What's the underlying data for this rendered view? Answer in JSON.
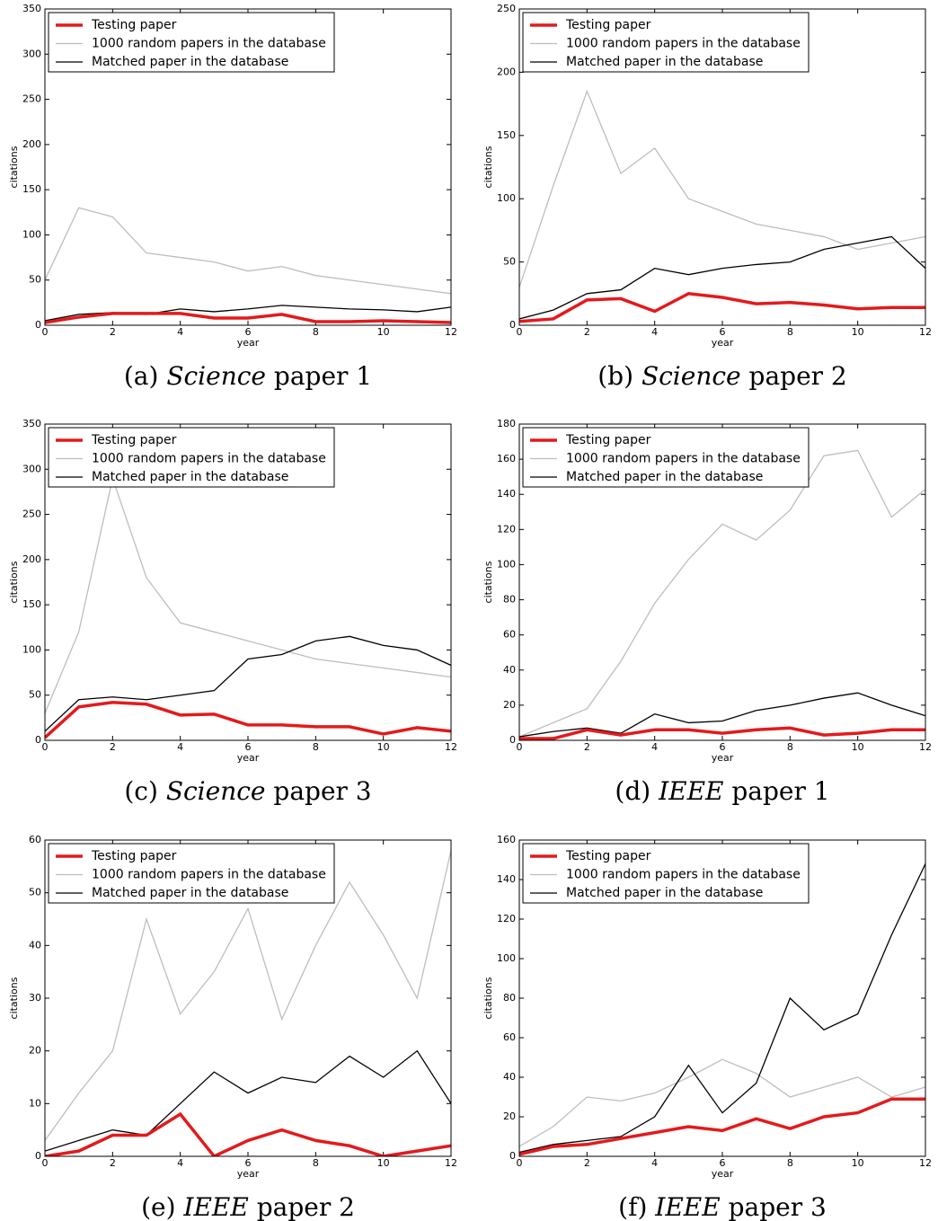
{
  "chart_data": [
    {
      "type": "line",
      "caption": {
        "label": "(a)",
        "journal": "Science",
        "text": "paper 1"
      },
      "xlabel": "year",
      "ylabel": "citations",
      "x": [
        0,
        1,
        2,
        3,
        4,
        5,
        6,
        7,
        8,
        9,
        10,
        11,
        12
      ],
      "xlim": [
        0,
        12
      ],
      "xticks": [
        0,
        2,
        4,
        6,
        8,
        10,
        12
      ],
      "ylim": [
        0,
        350
      ],
      "yticks": [
        0,
        50,
        100,
        150,
        200,
        250,
        300,
        350
      ],
      "series": [
        {
          "name": "Testing paper",
          "color": "#e31a1c",
          "values": [
            3,
            9,
            13,
            13,
            13,
            8,
            8,
            12,
            4,
            4,
            5,
            4,
            3
          ]
        },
        {
          "name": "1000 random papers in the database",
          "color": "#bdbdbd",
          "values": [
            50,
            130,
            120,
            80,
            75,
            70,
            60,
            65,
            55,
            50,
            45,
            40,
            35
          ]
        },
        {
          "name": "Matched paper in the database",
          "color": "#000000",
          "values": [
            5,
            12,
            14,
            12,
            18,
            15,
            18,
            22,
            20,
            18,
            17,
            15,
            20
          ]
        }
      ]
    },
    {
      "type": "line",
      "caption": {
        "label": "(b)",
        "journal": "Science",
        "text": "paper 2"
      },
      "xlabel": "year",
      "ylabel": "citations",
      "x": [
        0,
        1,
        2,
        3,
        4,
        5,
        6,
        7,
        8,
        9,
        10,
        11,
        12
      ],
      "xlim": [
        0,
        12
      ],
      "xticks": [
        0,
        2,
        4,
        6,
        8,
        10,
        12
      ],
      "ylim": [
        0,
        250
      ],
      "yticks": [
        0,
        50,
        100,
        150,
        200,
        250
      ],
      "series": [
        {
          "name": "Testing paper",
          "color": "#e31a1c",
          "values": [
            3,
            5,
            20,
            21,
            11,
            25,
            22,
            17,
            18,
            16,
            13,
            14,
            14
          ]
        },
        {
          "name": "1000 random papers in the database",
          "color": "#bdbdbd",
          "values": [
            30,
            110,
            185,
            120,
            140,
            100,
            90,
            80,
            75,
            70,
            60,
            65,
            70
          ]
        },
        {
          "name": "Matched paper in the database",
          "color": "#000000",
          "values": [
            5,
            12,
            25,
            28,
            45,
            40,
            45,
            48,
            50,
            60,
            65,
            70,
            45
          ]
        }
      ]
    },
    {
      "type": "line",
      "caption": {
        "label": "(c)",
        "journal": "Science",
        "text": "paper 3"
      },
      "xlabel": "year",
      "ylabel": "citations",
      "x": [
        0,
        1,
        2,
        3,
        4,
        5,
        6,
        7,
        8,
        9,
        10,
        11,
        12
      ],
      "xlim": [
        0,
        12
      ],
      "xticks": [
        0,
        2,
        4,
        6,
        8,
        10,
        12
      ],
      "ylim": [
        0,
        350
      ],
      "yticks": [
        0,
        50,
        100,
        150,
        200,
        250,
        300,
        350
      ],
      "series": [
        {
          "name": "Testing paper",
          "color": "#e31a1c",
          "values": [
            3,
            37,
            42,
            40,
            28,
            29,
            17,
            17,
            15,
            15,
            7,
            14,
            10
          ]
        },
        {
          "name": "1000 random papers in the database",
          "color": "#bdbdbd",
          "values": [
            30,
            120,
            290,
            180,
            130,
            120,
            110,
            100,
            90,
            85,
            80,
            75,
            70
          ]
        },
        {
          "name": "Matched paper in the database",
          "color": "#000000",
          "values": [
            10,
            45,
            48,
            45,
            50,
            55,
            90,
            95,
            110,
            115,
            105,
            100,
            83
          ]
        }
      ]
    },
    {
      "type": "line",
      "caption": {
        "label": "(d)",
        "journal": "IEEE",
        "text": "paper 1"
      },
      "xlabel": "year",
      "ylabel": "citations",
      "x": [
        0,
        1,
        2,
        3,
        4,
        5,
        6,
        7,
        8,
        9,
        10,
        11,
        12
      ],
      "xlim": [
        0,
        12
      ],
      "xticks": [
        0,
        2,
        4,
        6,
        8,
        10,
        12
      ],
      "ylim": [
        0,
        180
      ],
      "yticks": [
        0,
        20,
        40,
        60,
        80,
        100,
        120,
        140,
        160,
        180
      ],
      "series": [
        {
          "name": "Testing paper",
          "color": "#e31a1c",
          "values": [
            1,
            1,
            6,
            3,
            6,
            6,
            4,
            6,
            7,
            3,
            4,
            6,
            6
          ]
        },
        {
          "name": "1000 random papers in the database",
          "color": "#bdbdbd",
          "values": [
            2,
            10,
            18,
            45,
            78,
            103,
            123,
            114,
            131,
            162,
            165,
            127,
            143
          ]
        },
        {
          "name": "Matched paper in the database",
          "color": "#000000",
          "values": [
            2,
            5,
            7,
            4,
            15,
            10,
            11,
            17,
            20,
            24,
            27,
            20,
            14
          ]
        }
      ]
    },
    {
      "type": "line",
      "caption": {
        "label": "(e)",
        "journal": "IEEE",
        "text": "paper 2"
      },
      "xlabel": "year",
      "ylabel": "citations",
      "x": [
        0,
        1,
        2,
        3,
        4,
        5,
        6,
        7,
        8,
        9,
        10,
        11,
        12
      ],
      "xlim": [
        0,
        12
      ],
      "xticks": [
        0,
        2,
        4,
        6,
        8,
        10,
        12
      ],
      "ylim": [
        0,
        60
      ],
      "yticks": [
        0,
        10,
        20,
        30,
        40,
        50,
        60
      ],
      "series": [
        {
          "name": "Testing paper",
          "color": "#e31a1c",
          "values": [
            0,
            1,
            4,
            4,
            8,
            0,
            3,
            5,
            3,
            2,
            0,
            1,
            2
          ]
        },
        {
          "name": "1000 random papers in the database",
          "color": "#bdbdbd",
          "values": [
            3,
            12,
            20,
            45,
            27,
            35,
            47,
            26,
            40,
            52,
            42,
            30,
            58
          ]
        },
        {
          "name": "Matched paper in the database",
          "color": "#000000",
          "values": [
            1,
            3,
            5,
            4,
            10,
            16,
            12,
            15,
            14,
            19,
            15,
            20,
            10
          ]
        }
      ]
    },
    {
      "type": "line",
      "caption": {
        "label": "(f)",
        "journal": "IEEE",
        "text": "paper 3"
      },
      "xlabel": "year",
      "ylabel": "citations",
      "x": [
        0,
        1,
        2,
        3,
        4,
        5,
        6,
        7,
        8,
        9,
        10,
        11,
        12
      ],
      "xlim": [
        0,
        12
      ],
      "xticks": [
        0,
        2,
        4,
        6,
        8,
        10,
        12
      ],
      "ylim": [
        0,
        160
      ],
      "yticks": [
        0,
        20,
        40,
        60,
        80,
        100,
        120,
        140,
        160
      ],
      "series": [
        {
          "name": "Testing paper",
          "color": "#e31a1c",
          "values": [
            1,
            5,
            6,
            9,
            12,
            15,
            13,
            19,
            14,
            20,
            22,
            29,
            29
          ]
        },
        {
          "name": "1000 random papers in the database",
          "color": "#bdbdbd",
          "values": [
            5,
            15,
            30,
            28,
            32,
            40,
            49,
            42,
            30,
            35,
            40,
            30,
            35
          ]
        },
        {
          "name": "Matched paper in the database",
          "color": "#000000",
          "values": [
            2,
            6,
            8,
            10,
            20,
            46,
            22,
            37,
            80,
            64,
            72,
            112,
            148
          ]
        }
      ]
    }
  ]
}
